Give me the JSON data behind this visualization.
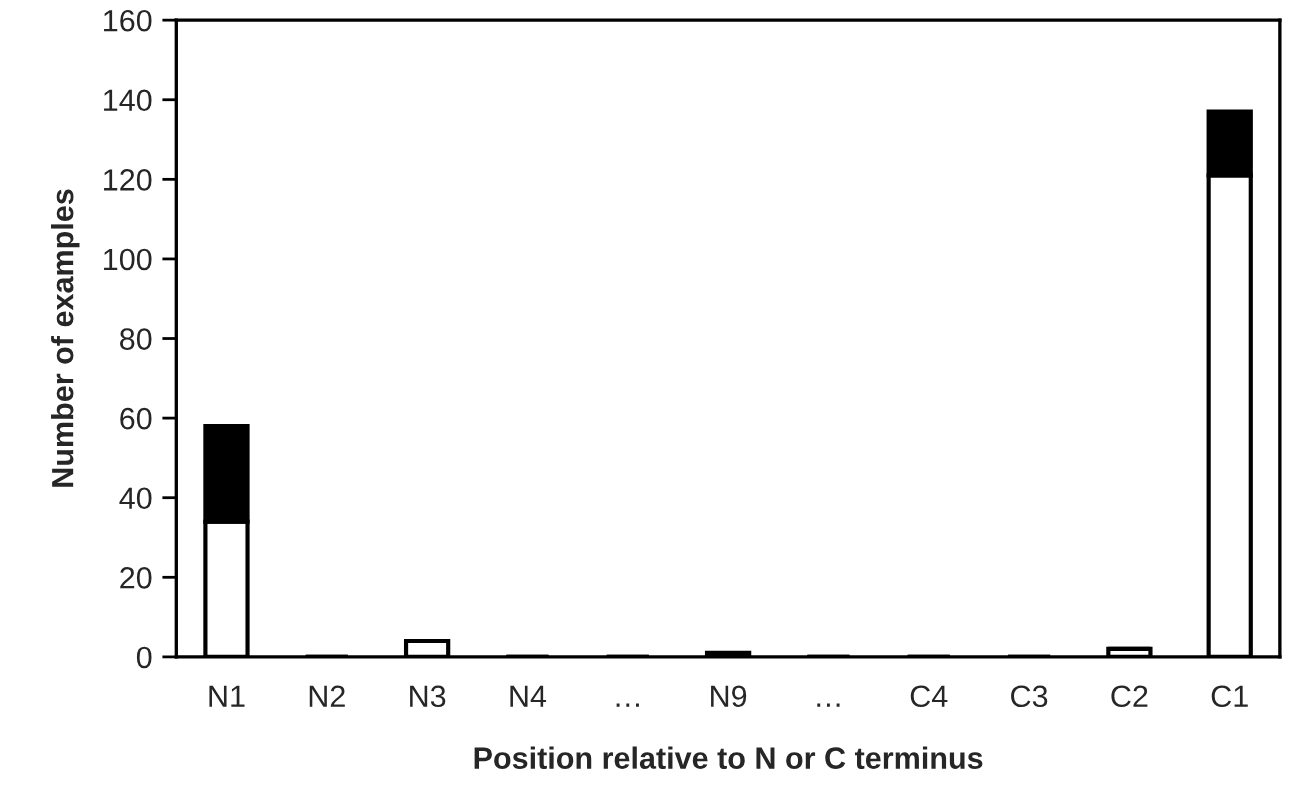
{
  "chart_data": {
    "type": "bar",
    "stacked": true,
    "xlabel": "Position relative to N or C terminus",
    "ylabel": "Number of examples",
    "categories": [
      "N1",
      "N2",
      "N3",
      "N4",
      "…",
      "N9",
      "…",
      "C4",
      "C3",
      "C2",
      "C1"
    ],
    "series": [
      {
        "color": "#ffffff",
        "values": [
          34,
          0,
          4,
          0,
          0,
          0,
          0,
          0,
          0,
          2,
          121
        ]
      },
      {
        "color": "#000000",
        "values": [
          24,
          0,
          0,
          0,
          0,
          1,
          0,
          0,
          0,
          0,
          16
        ]
      }
    ],
    "ylim": [
      0,
      160
    ],
    "yticks": [
      0,
      20,
      40,
      60,
      80,
      100,
      120,
      140,
      160
    ],
    "grid": false,
    "legend": false
  }
}
